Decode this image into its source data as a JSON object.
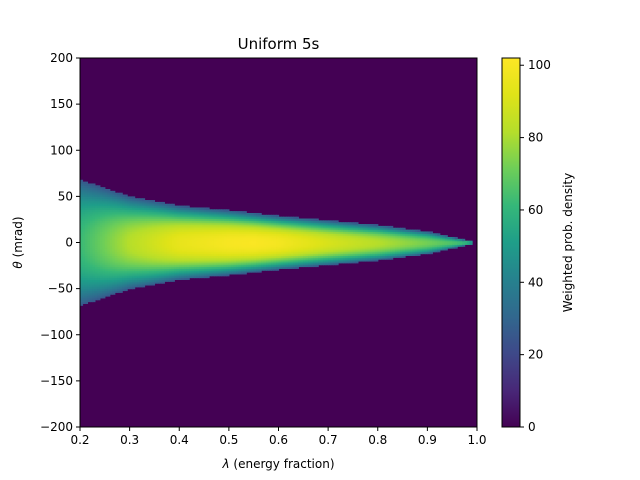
{
  "chart_data": {
    "type": "heatmap",
    "title": "Uniform 5s",
    "xlabel_symbol": "λ",
    "xlabel_text": " (energy fraction)",
    "ylabel_symbol": "θ",
    "ylabel_text": " (mrad)",
    "colorbar_label": "Weighted prob. density",
    "xlim": [
      0.2,
      1.0
    ],
    "ylim": [
      -200,
      200
    ],
    "clim": [
      0,
      102
    ],
    "colormap": "viridis",
    "x_ticks": [
      {
        "value": 0.2,
        "label": "0.2"
      },
      {
        "value": 0.3,
        "label": "0.3"
      },
      {
        "value": 0.4,
        "label": "0.4"
      },
      {
        "value": 0.5,
        "label": "0.5"
      },
      {
        "value": 0.6,
        "label": "0.6"
      },
      {
        "value": 0.7,
        "label": "0.7"
      },
      {
        "value": 0.8,
        "label": "0.8"
      },
      {
        "value": 0.9,
        "label": "0.9"
      },
      {
        "value": 1.0,
        "label": "1.0"
      }
    ],
    "y_ticks": [
      {
        "value": 200,
        "label": "200"
      },
      {
        "value": 150,
        "label": "150"
      },
      {
        "value": 100,
        "label": "100"
      },
      {
        "value": 50,
        "label": "50"
      },
      {
        "value": 0,
        "label": "0"
      },
      {
        "value": -50,
        "label": "−50"
      },
      {
        "value": -100,
        "label": "−100"
      },
      {
        "value": -150,
        "label": "−150"
      },
      {
        "value": -200,
        "label": "−200"
      }
    ],
    "colorbar_ticks": [
      {
        "value": 0,
        "label": "0"
      },
      {
        "value": 20,
        "label": "20"
      },
      {
        "value": 40,
        "label": "40"
      },
      {
        "value": 60,
        "label": "60"
      },
      {
        "value": 80,
        "label": "80"
      },
      {
        "value": 100,
        "label": "100"
      }
    ],
    "distribution": {
      "half_width_mrad": [
        {
          "lambda": 0.2,
          "theta": 68
        },
        {
          "lambda": 0.3,
          "theta": 50
        },
        {
          "lambda": 0.4,
          "theta": 40
        },
        {
          "lambda": 0.5,
          "theta": 35
        },
        {
          "lambda": 0.6,
          "theta": 29
        },
        {
          "lambda": 0.7,
          "theta": 24
        },
        {
          "lambda": 0.8,
          "theta": 19
        },
        {
          "lambda": 0.9,
          "theta": 12
        },
        {
          "lambda": 1.0,
          "theta": 0
        }
      ],
      "peak_along_axis": [
        {
          "lambda": 0.2,
          "value": 62
        },
        {
          "lambda": 0.3,
          "value": 82
        },
        {
          "lambda": 0.4,
          "value": 95
        },
        {
          "lambda": 0.5,
          "value": 100
        },
        {
          "lambda": 0.55,
          "value": 101
        },
        {
          "lambda": 0.6,
          "value": 99
        },
        {
          "lambda": 0.7,
          "value": 90
        },
        {
          "lambda": 0.8,
          "value": 82
        },
        {
          "lambda": 0.9,
          "value": 72
        },
        {
          "lambda": 1.0,
          "value": 60
        }
      ],
      "edge_value": 25
    }
  }
}
